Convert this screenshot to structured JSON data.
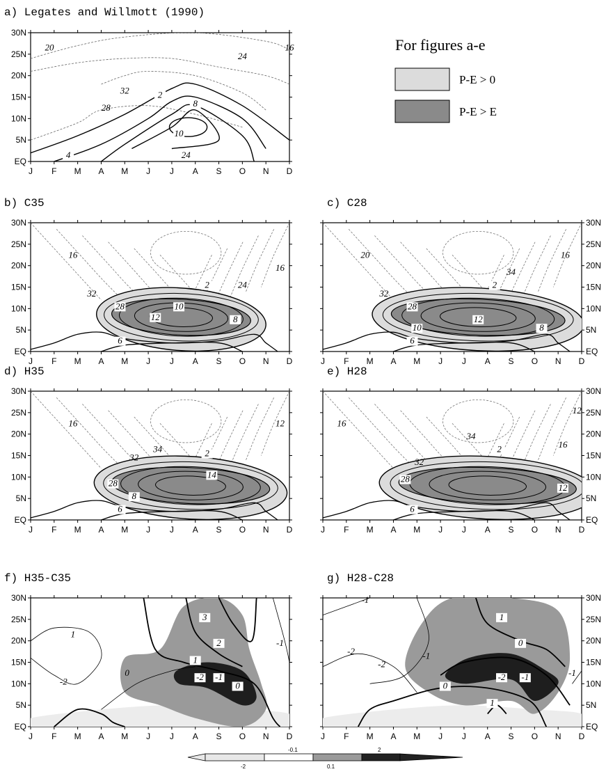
{
  "legend": {
    "title": "For figures a-e",
    "items": [
      {
        "label": "P-E > 0",
        "color": "#dcdcdc"
      },
      {
        "label": "P-E > E",
        "color": "#8a8a8a"
      }
    ]
  },
  "colorbar": {
    "labels": [
      "-2",
      "-0.1",
      "0.1",
      "2"
    ],
    "colors": [
      "#e8e8e8",
      "#ffffff",
      "#9a9a9a",
      "#222222"
    ]
  },
  "chart_data": [
    {
      "id": "a",
      "type": "contour",
      "title": "a) Legates and Willmott (1990)",
      "x_ticks": [
        "J",
        "F",
        "M",
        "A",
        "M",
        "J",
        "J",
        "A",
        "S",
        "O",
        "N",
        "D"
      ],
      "y_ticks": [
        "EQ",
        "5N",
        "10N",
        "15N",
        "20N",
        "25N",
        "30N"
      ],
      "y_side": "left",
      "contour_labels_dashed": [
        "20",
        "16",
        "32",
        "24",
        "28",
        "24"
      ],
      "contour_labels_solid": [
        "2",
        "8",
        "10",
        "4"
      ]
    },
    {
      "id": "b",
      "type": "contour",
      "title": "b) C35",
      "x_ticks": [
        "J",
        "F",
        "M",
        "A",
        "M",
        "J",
        "J",
        "A",
        "S",
        "O",
        "N",
        "D"
      ],
      "y_ticks": [
        "EQ",
        "5N",
        "10N",
        "15N",
        "20N",
        "25N",
        "30N"
      ],
      "y_side": "left",
      "contour_labels_dashed": [
        "16",
        "16",
        "24",
        "32"
      ],
      "contour_labels_solid": [
        "2",
        "28",
        "10",
        "12",
        "8",
        "6"
      ]
    },
    {
      "id": "c",
      "type": "contour",
      "title": "c) C28",
      "x_ticks": [
        "J",
        "F",
        "M",
        "A",
        "M",
        "J",
        "J",
        "A",
        "S",
        "O",
        "N",
        "D"
      ],
      "y_ticks": [
        "EQ",
        "5N",
        "10N",
        "15N",
        "20N",
        "25N",
        "30N"
      ],
      "y_side": "right",
      "contour_labels_dashed": [
        "20",
        "16",
        "34",
        "32"
      ],
      "contour_labels_solid": [
        "2",
        "28",
        "10",
        "12",
        "8",
        "6"
      ]
    },
    {
      "id": "d",
      "type": "contour",
      "title": "d) H35",
      "x_ticks": [
        "J",
        "F",
        "M",
        "A",
        "M",
        "J",
        "J",
        "A",
        "S",
        "O",
        "N",
        "D"
      ],
      "y_ticks": [
        "EQ",
        "5N",
        "10N",
        "15N",
        "20N",
        "25N",
        "30N"
      ],
      "y_side": "left",
      "contour_labels_dashed": [
        "16",
        "12",
        "32",
        "34"
      ],
      "contour_labels_solid": [
        "2",
        "28",
        "14",
        "8",
        "6"
      ]
    },
    {
      "id": "e",
      "type": "contour",
      "title": "e) H28",
      "x_ticks": [
        "J",
        "F",
        "M",
        "A",
        "M",
        "J",
        "J",
        "A",
        "S",
        "O",
        "N",
        "D"
      ],
      "y_ticks": [
        "EQ",
        "5N",
        "10N",
        "15N",
        "20N",
        "25N",
        "30N"
      ],
      "y_side": "right",
      "contour_labels_dashed": [
        "16",
        "12",
        "16",
        "34",
        "32"
      ],
      "contour_labels_solid": [
        "2",
        "28",
        "12",
        "6"
      ]
    },
    {
      "id": "f",
      "type": "contour",
      "title": "f) H35-C35",
      "x_ticks": [
        "J",
        "F",
        "M",
        "A",
        "M",
        "J",
        "J",
        "A",
        "S",
        "O",
        "N",
        "D"
      ],
      "y_ticks": [
        "EQ",
        "5N",
        "10N",
        "15N",
        "20N",
        "25N",
        "30N"
      ],
      "y_side": "left",
      "contour_labels_thin": [
        "1",
        "-2",
        "-1",
        "0"
      ],
      "contour_labels_thick": [
        "3",
        "2",
        "1",
        "-2",
        "-1",
        "0"
      ]
    },
    {
      "id": "g",
      "type": "contour",
      "title": "g) H28-C28",
      "x_ticks": [
        "J",
        "F",
        "M",
        "A",
        "M",
        "J",
        "J",
        "A",
        "S",
        "O",
        "N",
        "D"
      ],
      "y_ticks": [
        "EQ",
        "5N",
        "10N",
        "15N",
        "20N",
        "25N",
        "30N"
      ],
      "y_side": "right",
      "contour_labels_thin": [
        "-1",
        "-2",
        "-2",
        "-1",
        "-1"
      ],
      "contour_labels_thick": [
        "1",
        "0",
        "-2",
        "-1",
        "0",
        "1"
      ]
    }
  ]
}
